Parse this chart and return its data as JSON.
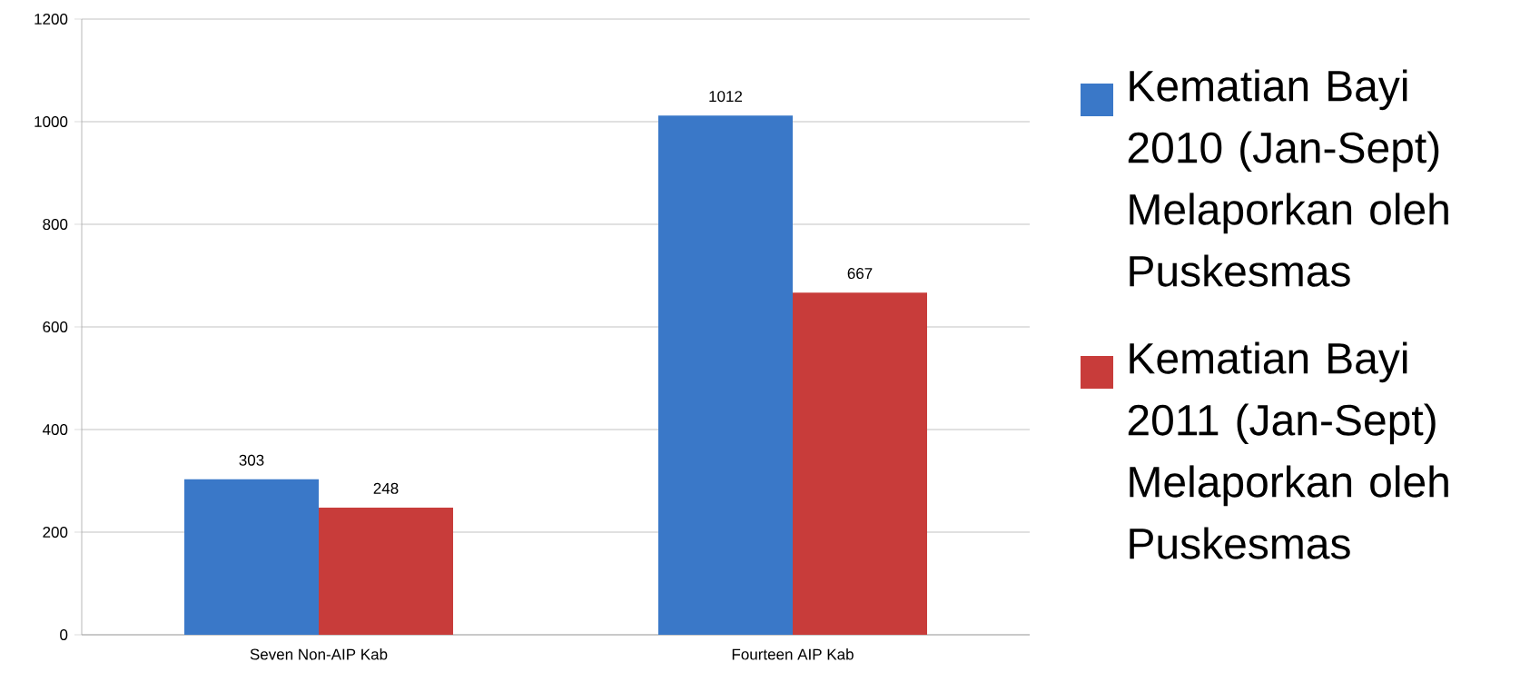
{
  "chart_data": {
    "type": "bar",
    "categories": [
      "Seven Non-AIP Kab",
      "Fourteen AIP Kab"
    ],
    "series": [
      {
        "name": "Kematian Bayi 2010 (Jan-Sept) Melaporkan oleh Puskesmas",
        "color": "#3a78c8",
        "values": [
          303,
          1012
        ]
      },
      {
        "name": "Kematian Bayi 2011 (Jan-Sept) Melaporkan oleh Puskesmas",
        "color": "#c83c3a",
        "values": [
          248,
          667
        ]
      }
    ],
    "ylim": [
      0,
      1200
    ],
    "yticks": [
      0,
      200,
      400,
      600,
      800,
      1000,
      1200
    ],
    "grid": "y",
    "legend": "right",
    "data_labels": true
  }
}
